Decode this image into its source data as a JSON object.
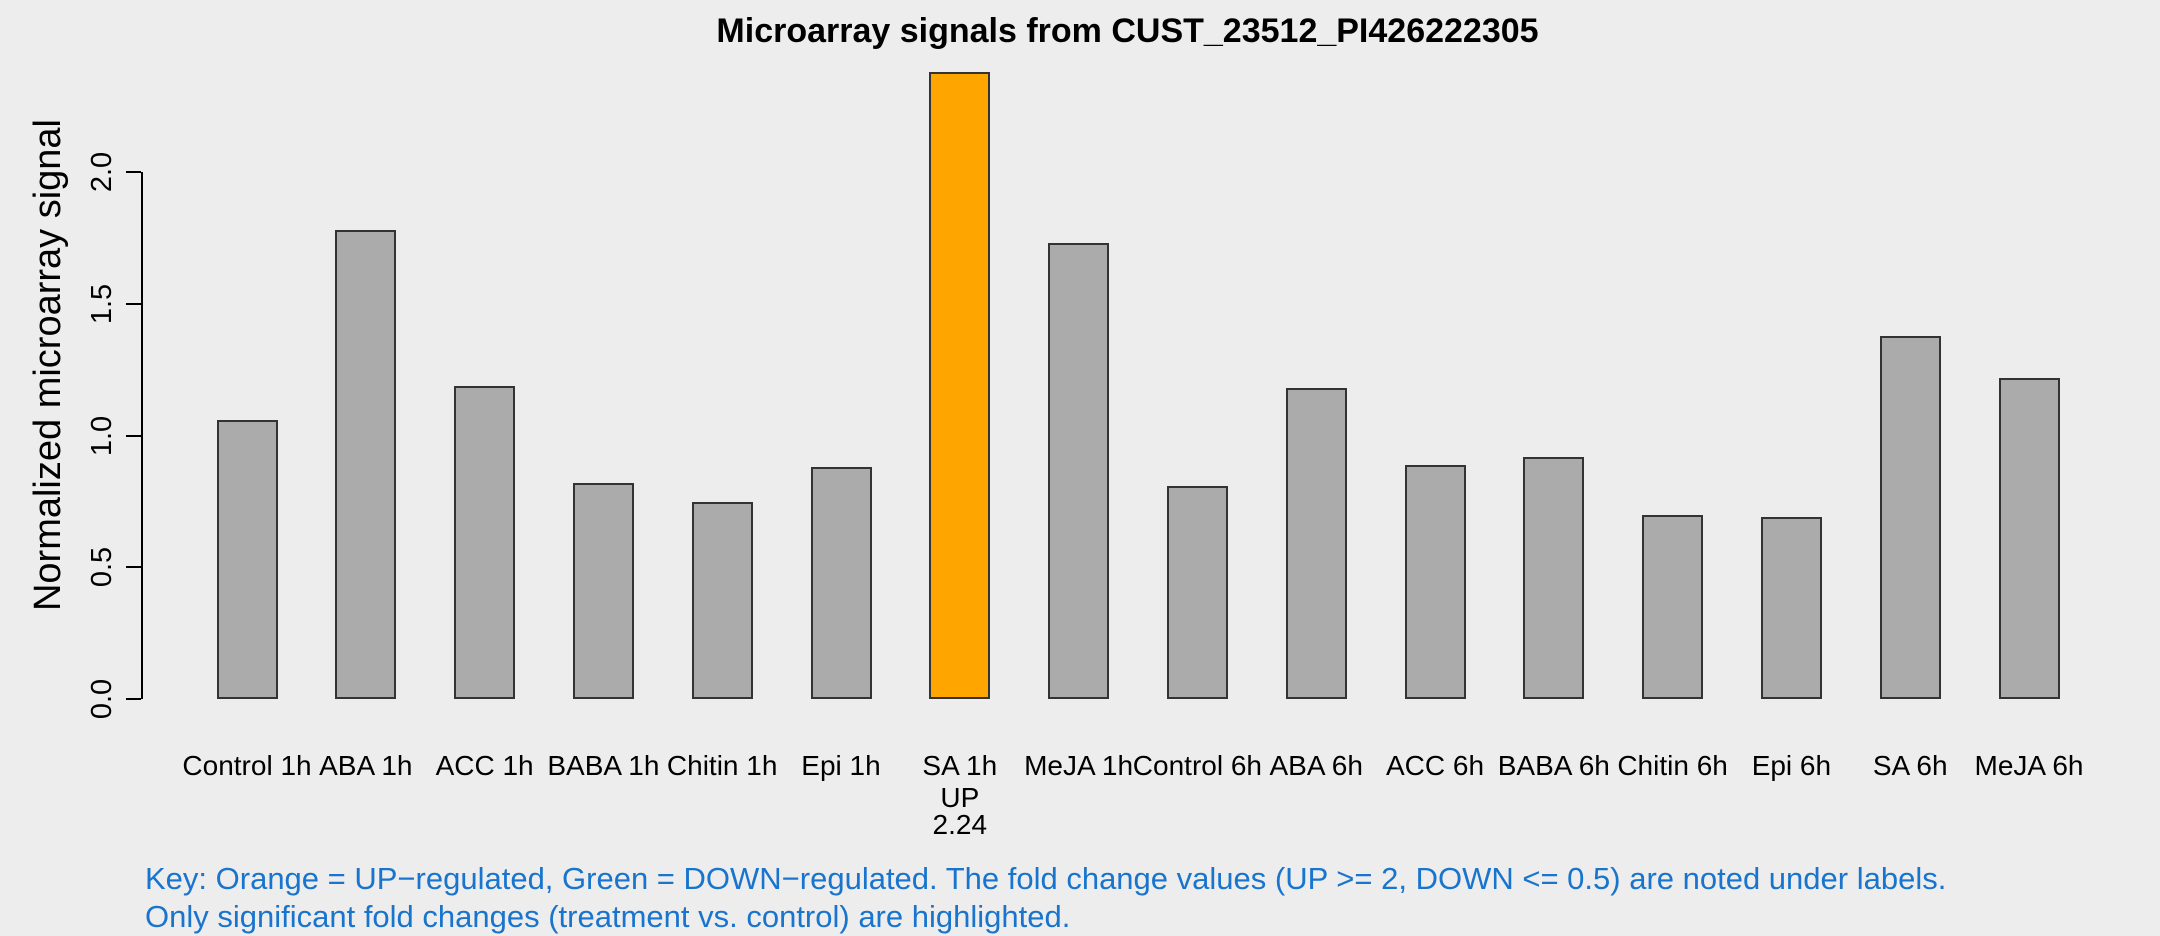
{
  "chart_data": {
    "type": "bar",
    "title": "Microarray signals from CUST_23512_PI426222305",
    "xlabel": "",
    "ylabel": "Normalized microarray signal",
    "categories": [
      "Control 1h",
      "ABA 1h",
      "ACC 1h",
      "BABA 1h",
      "Chitin 1h",
      "Epi 1h",
      "SA 1h",
      "MeJA 1h",
      "Control 6h",
      "ABA 6h",
      "ACC 6h",
      "BABA 6h",
      "Chitin 6h",
      "Epi 6h",
      "SA 6h",
      "MeJA 6h"
    ],
    "values": [
      1.06,
      1.78,
      1.19,
      0.82,
      0.75,
      0.88,
      2.38,
      1.73,
      0.81,
      1.18,
      0.89,
      0.92,
      0.7,
      0.69,
      1.38,
      1.22
    ],
    "ytick_labels": [
      "0.0",
      "0.5",
      "1.0",
      "1.5",
      "2.0"
    ],
    "yticks": [
      0.0,
      0.5,
      1.0,
      1.5,
      2.0
    ],
    "ylim": [
      0,
      2.4
    ],
    "grid": false,
    "legend": "none",
    "annotations": [
      {
        "index": 6,
        "category": "SA 1h",
        "direction": "UP",
        "lines": [
          "UP",
          "2.24"
        ]
      }
    ],
    "colors": {
      "background": "#EDEDED",
      "bar_default": "#ABABAB",
      "bar_up": "#FFA500",
      "bar_border": "#333333",
      "axis_and_text": "#000000",
      "key_text": "#1874CD"
    }
  },
  "footer": {
    "key_line1": "Key: Orange = UP−regulated, Green = DOWN−regulated. The fold change values (UP >= 2, DOWN <= 0.5) are noted under labels.",
    "key_line2": "Only significant fold changes (treatment vs. control) are highlighted."
  }
}
